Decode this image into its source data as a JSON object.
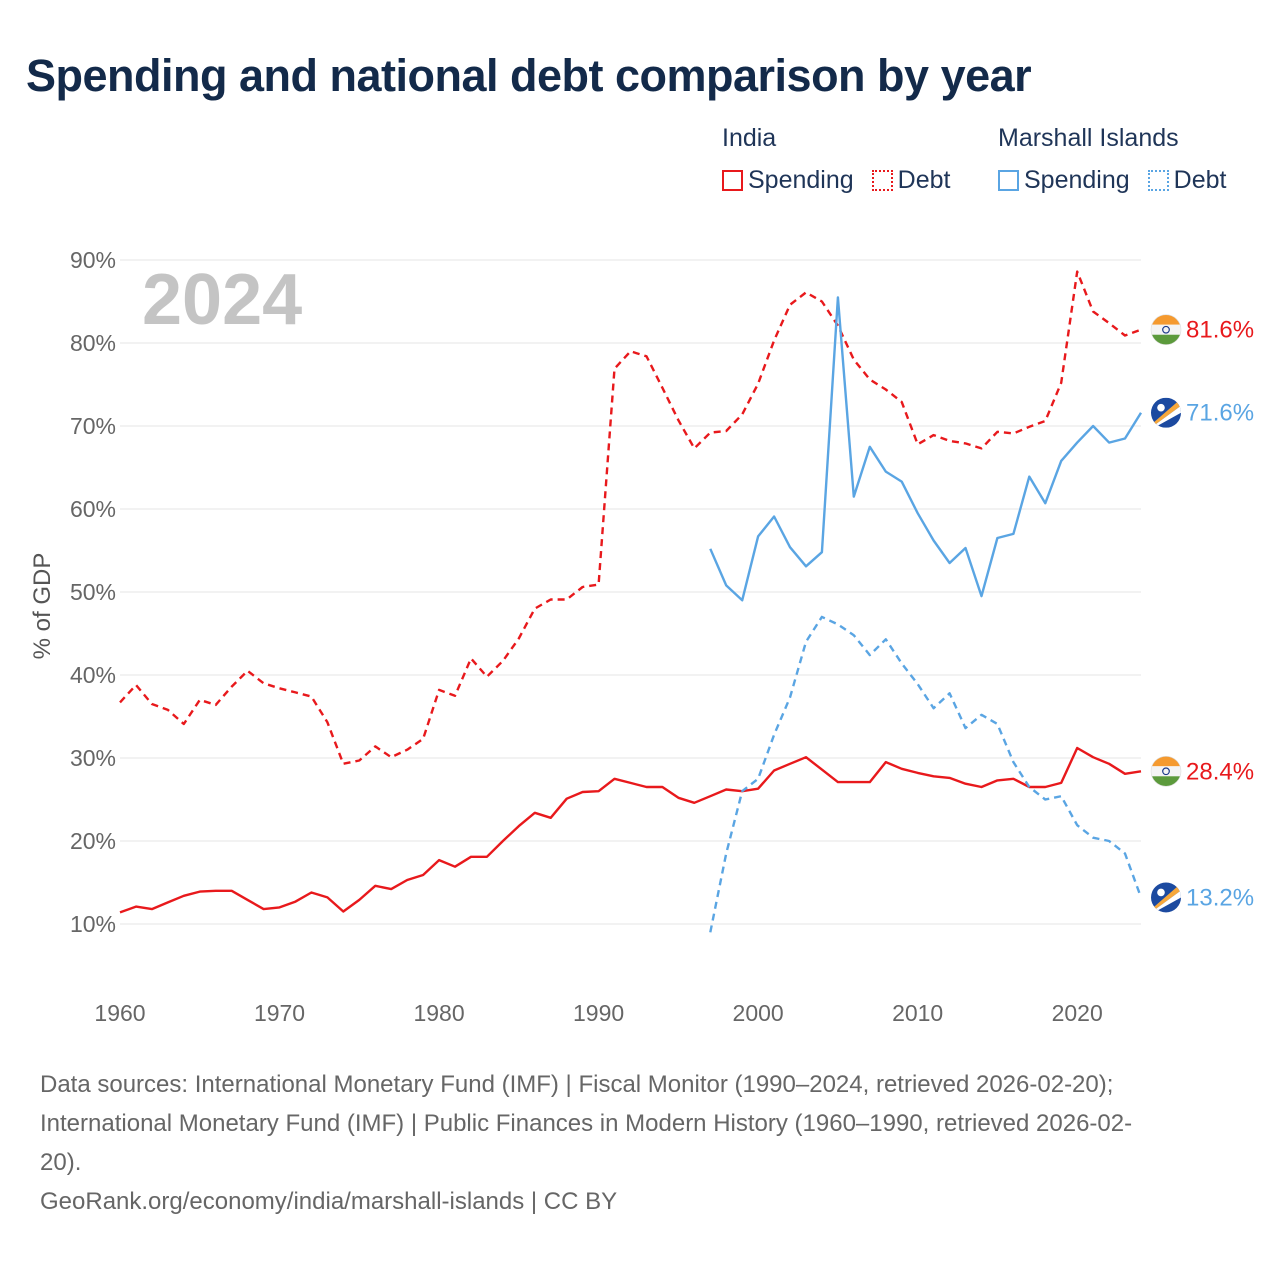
{
  "chart_data": {
    "type": "line",
    "title": "Spending and national debt comparison by year",
    "ylabel": "% of GDP",
    "xlabel": "",
    "year_watermark": "2024",
    "xlim": [
      1960,
      2024
    ],
    "ylim": [
      0,
      90
    ],
    "x_ticks": [
      1960,
      1970,
      1980,
      1990,
      2000,
      2010,
      2020
    ],
    "y_ticks": [
      10,
      20,
      30,
      40,
      50,
      60,
      70,
      80,
      90
    ],
    "y_tick_labels": [
      "10%",
      "20%",
      "30%",
      "40%",
      "50%",
      "60%",
      "70%",
      "80%",
      "90%"
    ],
    "series": [
      {
        "name": "India Spending",
        "country": "India",
        "metric": "Spending",
        "color": "#e8191c",
        "dashed": false,
        "end_label": "28.4%",
        "x": [
          1960,
          1961,
          1962,
          1963,
          1964,
          1965,
          1966,
          1967,
          1968,
          1969,
          1970,
          1971,
          1972,
          1973,
          1974,
          1975,
          1976,
          1977,
          1978,
          1979,
          1980,
          1981,
          1982,
          1983,
          1984,
          1985,
          1986,
          1987,
          1988,
          1989,
          1990,
          1991,
          1992,
          1993,
          1994,
          1995,
          1996,
          1997,
          1998,
          1999,
          2000,
          2001,
          2002,
          2003,
          2004,
          2005,
          2006,
          2007,
          2008,
          2009,
          2010,
          2011,
          2012,
          2013,
          2014,
          2015,
          2016,
          2017,
          2018,
          2019,
          2020,
          2021,
          2022,
          2023,
          2024
        ],
        "values": [
          11.4,
          12.1,
          11.8,
          12.6,
          13.4,
          13.9,
          14.0,
          14.0,
          12.9,
          11.8,
          12.0,
          12.7,
          13.8,
          13.2,
          11.5,
          12.9,
          14.6,
          14.2,
          15.3,
          15.9,
          17.7,
          16.9,
          18.1,
          18.1,
          20.0,
          21.8,
          23.4,
          22.8,
          25.1,
          25.9,
          26.0,
          27.5,
          27.0,
          26.5,
          26.5,
          25.2,
          24.6,
          25.4,
          26.2,
          26.0,
          26.3,
          28.5,
          29.3,
          30.1,
          28.6,
          27.1,
          27.1,
          27.1,
          29.5,
          28.7,
          28.2,
          27.8,
          27.6,
          26.9,
          26.5,
          27.3,
          27.5,
          26.5,
          26.5,
          27.0,
          31.2,
          30.1,
          29.3,
          28.1,
          28.4
        ]
      },
      {
        "name": "India Debt",
        "country": "India",
        "metric": "Debt",
        "color": "#e8191c",
        "dashed": true,
        "end_label": "81.6%",
        "x": [
          1960,
          1961,
          1962,
          1963,
          1964,
          1965,
          1966,
          1967,
          1968,
          1969,
          1970,
          1971,
          1972,
          1973,
          1974,
          1975,
          1976,
          1977,
          1978,
          1979,
          1980,
          1981,
          1982,
          1983,
          1984,
          1985,
          1986,
          1987,
          1988,
          1989,
          1990,
          1991,
          1992,
          1993,
          1994,
          1995,
          1996,
          1997,
          1998,
          1999,
          2000,
          2001,
          2002,
          2003,
          2004,
          2005,
          2006,
          2007,
          2008,
          2009,
          2010,
          2011,
          2012,
          2013,
          2014,
          2015,
          2016,
          2017,
          2018,
          2019,
          2020,
          2021,
          2022,
          2023,
          2024
        ],
        "values": [
          36.7,
          38.8,
          36.5,
          35.8,
          34.1,
          37.0,
          36.4,
          38.6,
          40.5,
          39.0,
          38.4,
          37.9,
          37.4,
          34.3,
          29.3,
          29.7,
          31.4,
          30.1,
          31.0,
          32.3,
          38.2,
          37.5,
          42.0,
          39.8,
          41.7,
          44.4,
          48.0,
          49.1,
          49.1,
          50.6,
          50.9,
          76.9,
          79.0,
          78.4,
          74.6,
          70.7,
          67.3,
          69.2,
          69.4,
          71.4,
          75.1,
          80.3,
          84.6,
          86.1,
          85.0,
          82.1,
          78.0,
          75.6,
          74.4,
          72.9,
          67.8,
          68.9,
          68.2,
          67.9,
          67.3,
          69.3,
          69.1,
          69.9,
          70.6,
          75.2,
          88.6,
          83.8,
          82.4,
          80.9,
          81.6
        ]
      },
      {
        "name": "Marshall Islands Spending",
        "country": "Marshall Islands",
        "metric": "Spending",
        "color": "#5aa5e3",
        "dashed": false,
        "end_label": "71.6%",
        "x": [
          1997,
          1998,
          1999,
          2000,
          2001,
          2002,
          2003,
          2004,
          2005,
          2006,
          2007,
          2008,
          2009,
          2010,
          2011,
          2012,
          2013,
          2014,
          2015,
          2016,
          2017,
          2018,
          2019,
          2020,
          2021,
          2022,
          2023,
          2024
        ],
        "values": [
          55.2,
          50.8,
          49.0,
          56.7,
          59.1,
          55.4,
          53.1,
          54.8,
          85.5,
          61.5,
          67.5,
          64.5,
          63.3,
          59.5,
          56.2,
          53.5,
          55.3,
          49.5,
          56.5,
          57.0,
          63.9,
          60.7,
          65.8,
          68.0,
          70.0,
          68.0,
          68.5,
          71.6
        ]
      },
      {
        "name": "Marshall Islands Debt",
        "country": "Marshall Islands",
        "metric": "Debt",
        "color": "#5aa5e3",
        "dashed": true,
        "end_label": "13.2%",
        "x": [
          1997,
          1998,
          1999,
          2000,
          2001,
          2002,
          2003,
          2004,
          2005,
          2006,
          2007,
          2008,
          2009,
          2010,
          2011,
          2012,
          2013,
          2014,
          2015,
          2016,
          2017,
          2018,
          2019,
          2020,
          2021,
          2022,
          2023,
          2024
        ],
        "values": [
          9.0,
          18.5,
          26.0,
          27.5,
          32.8,
          37.3,
          44.0,
          47.0,
          46.1,
          44.8,
          42.4,
          44.3,
          41.4,
          38.9,
          36.0,
          37.8,
          33.6,
          35.2,
          34.1,
          29.5,
          26.5,
          25.0,
          25.4,
          21.9,
          20.4,
          20.0,
          18.5,
          13.2
        ]
      }
    ],
    "legend": {
      "groups": [
        {
          "country": "India",
          "items": [
            {
              "label": "Spending"
            },
            {
              "label": "Debt"
            }
          ]
        },
        {
          "country": "Marshall Islands",
          "items": [
            {
              "label": "Spending"
            },
            {
              "label": "Debt"
            }
          ]
        }
      ]
    }
  },
  "footer": {
    "sources_line1": "Data sources: International Monetary Fund (IMF) | Fiscal Monitor (1990–2024, retrieved 2026-02-20);",
    "sources_line2": "International Monetary Fund (IMF) | Public Finances in Modern History (1960–1990, retrieved 2026-02-",
    "sources_line3": "20).",
    "credit": "GeoRank.org/economy/india/marshall-islands | CC BY"
  },
  "colors": {
    "india": "#e8191c",
    "marshall_islands": "#5aa5e3",
    "title": "#132a4a",
    "grid": "#e6e6e6",
    "axis_text": "#666666",
    "watermark": "#c4c4c4"
  }
}
